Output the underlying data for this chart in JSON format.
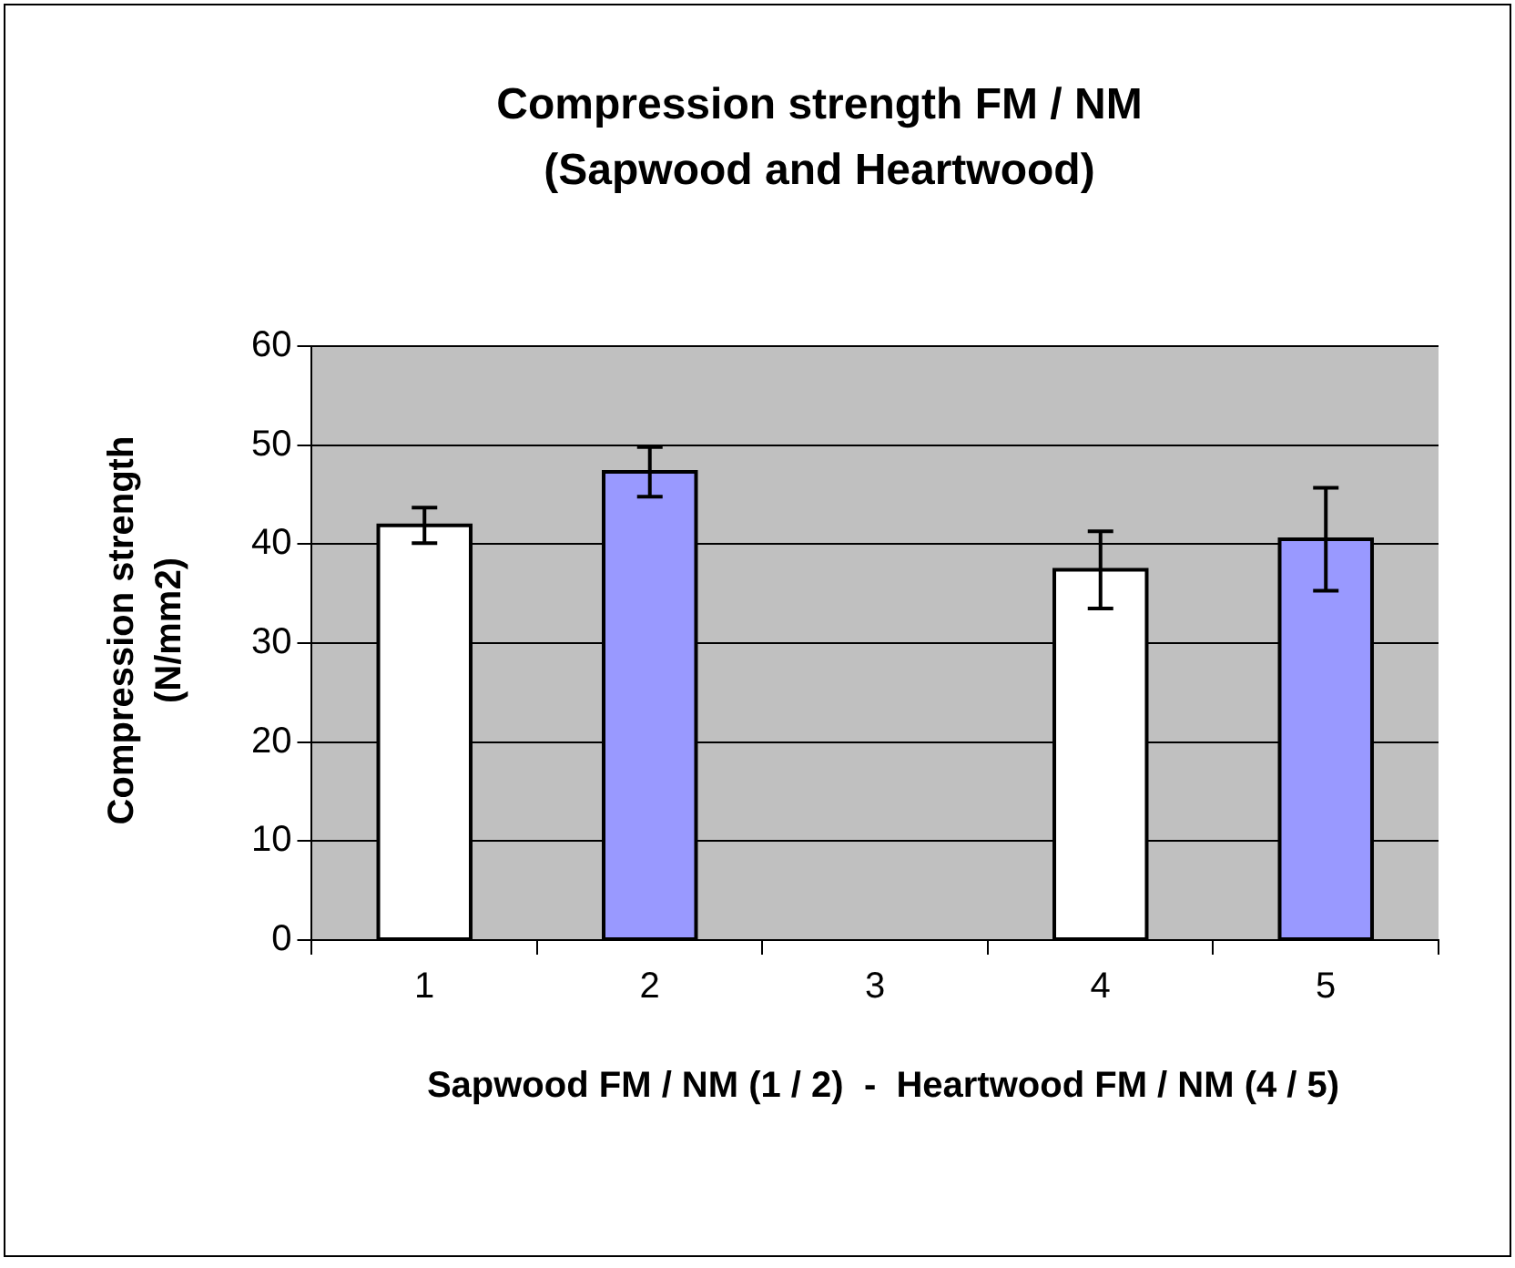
{
  "chart_data": {
    "type": "bar",
    "title": "Compression strength FM / NM\n(Sapwood and Heartwood)",
    "xlabel": "Sapwood FM / NM (1 / 2)  -  Heartwood FM / NM (4 / 5)",
    "ylabel": "Compression strength (N/mm2)",
    "categories": [
      "1",
      "2",
      "3",
      "4",
      "5"
    ],
    "values": [
      41.9,
      47.3,
      null,
      37.4,
      40.5
    ],
    "errors": [
      1.8,
      2.5,
      null,
      3.9,
      5.2
    ],
    "colors": [
      "#ffffff",
      "#9999ff",
      "#ffffff",
      "#ffffff",
      "#9999ff"
    ],
    "ylim": [
      0,
      60
    ],
    "yticks": [
      0,
      10,
      20,
      30,
      40,
      50,
      60
    ],
    "grid": "y",
    "legend": false
  }
}
